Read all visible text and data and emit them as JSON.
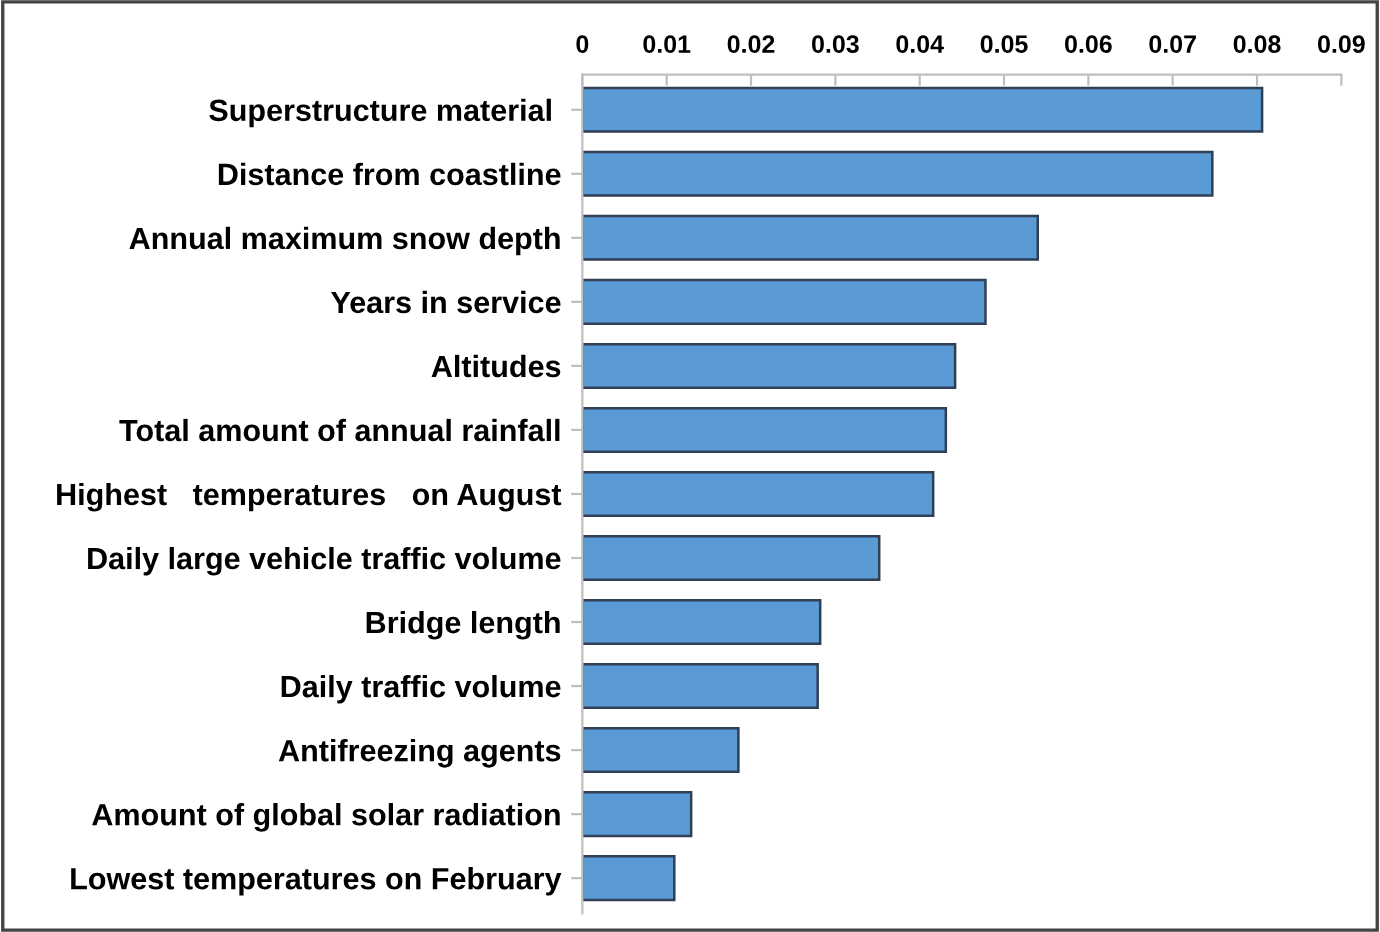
{
  "chart_data": {
    "type": "bar",
    "orientation": "horizontal",
    "categories": [
      "Superstructure material ",
      "Distance from coastline",
      "Annual maximum snow depth",
      "Years in service",
      "Altitudes",
      "Total amount of annual rainfall",
      "Highest   temperatures   on August",
      "Daily large vehicle traffic volume",
      "Bridge length",
      "Daily traffic volume",
      "Antifreezing agents",
      "Amount of global solar radiation",
      "Lowest temperatures on February"
    ],
    "values": [
      0.0806,
      0.0747,
      0.054,
      0.0478,
      0.0442,
      0.0431,
      0.0416,
      0.0352,
      0.0282,
      0.0279,
      0.0185,
      0.0129,
      0.0109
    ],
    "color": "#5b9bd5",
    "xlim": [
      0,
      0.09
    ],
    "xticks": [
      {
        "value": 0,
        "label": "0"
      },
      0.01,
      0.02,
      0.03,
      0.04,
      0.05,
      0.06,
      0.07,
      0.08,
      0.09
    ],
    "grid": false,
    "legend": false
  }
}
